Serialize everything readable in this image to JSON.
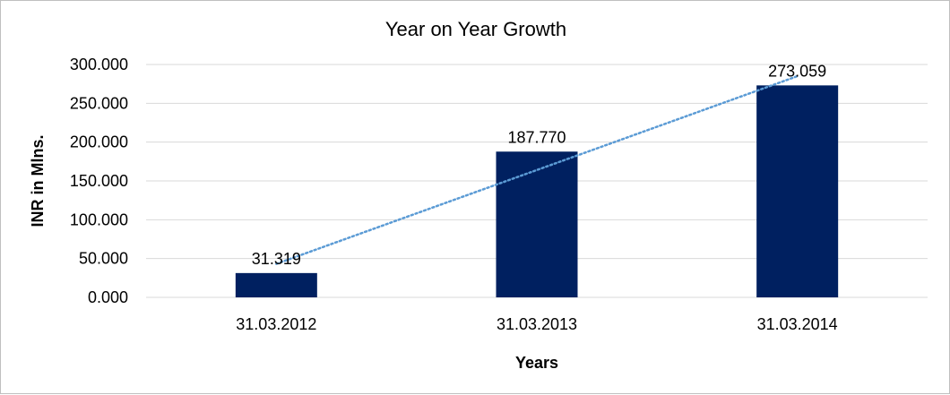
{
  "chart_data": {
    "type": "bar",
    "title": "Year on Year Growth",
    "xlabel": "Years",
    "ylabel": "INR in Mlns.",
    "categories": [
      "31.03.2012",
      "31.03.2013",
      "31.03.2014"
    ],
    "values": [
      31.319,
      187.77,
      273.059
    ],
    "data_labels": [
      "31.319",
      "187.770",
      "273.059"
    ],
    "ylim": [
      0,
      300
    ],
    "yticks": [
      0,
      50,
      100,
      150,
      200,
      250,
      300
    ],
    "ytick_labels": [
      "0.000",
      "50.000",
      "100.000",
      "150.000",
      "200.000",
      "250.000",
      "300.000"
    ],
    "trendline": {
      "type": "linear",
      "style": "dotted"
    },
    "grid": true,
    "legend": "none",
    "colors": {
      "bar": "#002060",
      "trendline": "#5b9bd5",
      "grid": "#d9d9d9"
    }
  }
}
